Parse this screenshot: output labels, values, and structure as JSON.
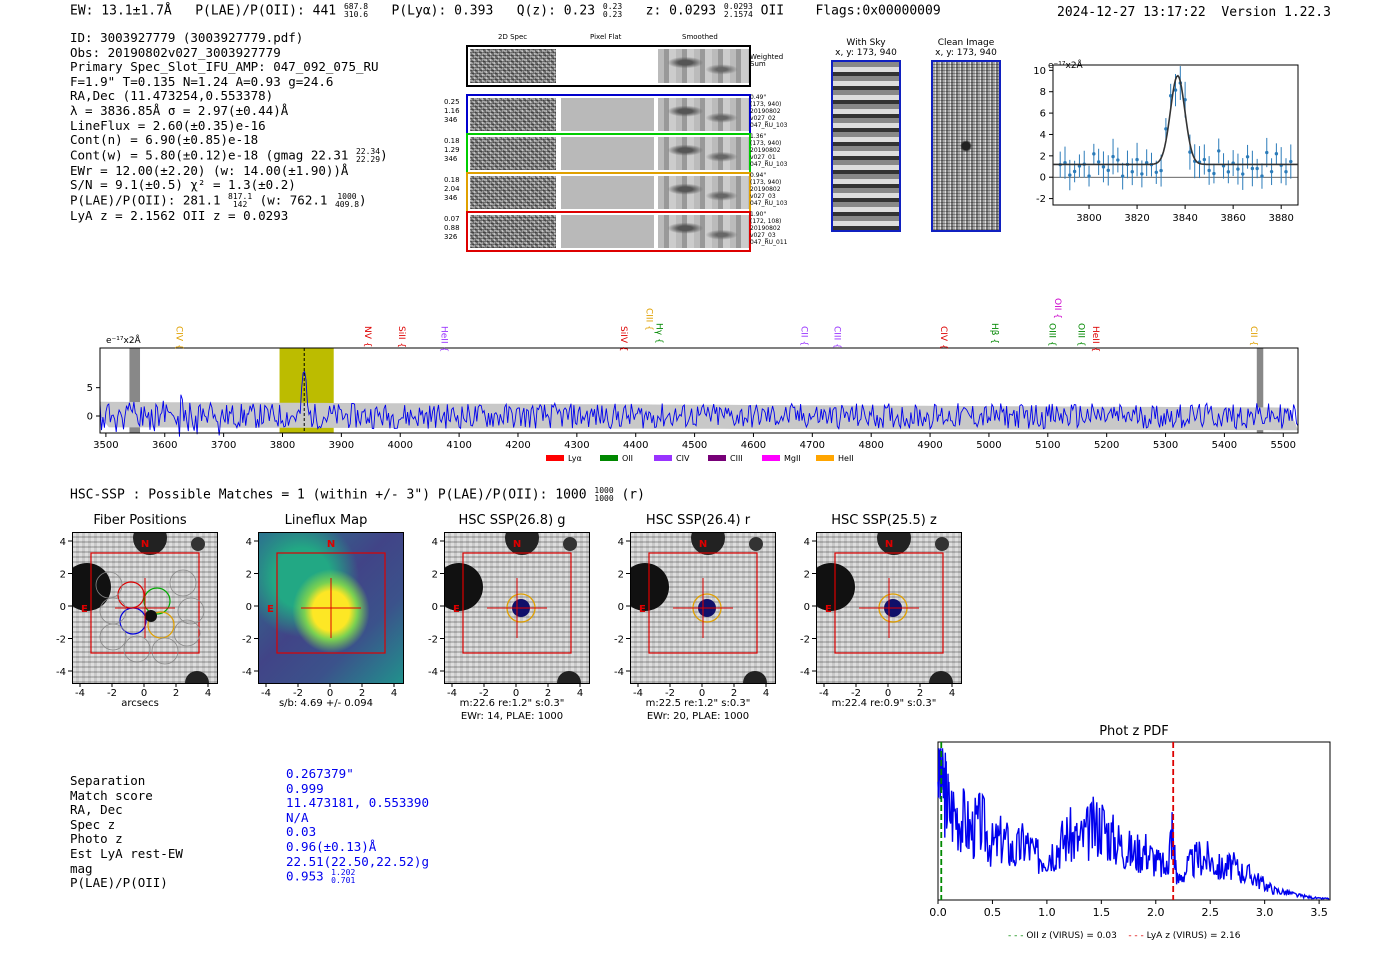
{
  "header": {
    "ew": "EW: 13.1±1.7Å",
    "plae_label": "P(LAE)/P(OII): 441",
    "plae_hi": "687.8",
    "plae_lo": "310.6",
    "plya": "P(Lyα): 0.393",
    "qz_label": "Q(z): 0.23",
    "qz_hi": "0.23",
    "qz_lo": "0.23",
    "z_label": "z: 0.0293",
    "z_hi": "0.0293",
    "z_lo": "2.1574",
    "z_line": "OII",
    "flags": "Flags:0x00000009",
    "datetime": "2024-12-27 13:17:22",
    "version": "Version 1.22.3"
  },
  "info": {
    "id": "ID: 3003927779 (3003927779.pdf)",
    "obs": "Obs: 20190802v027_3003927779",
    "primary": "Primary Spec_Slot_IFU_AMP: 047_092_075_RU",
    "params": "F=1.9\"  T=0.135  N=1.24  A=0.93  g=24.6",
    "radec": "RA,Dec (11.473254,0.553378)",
    "lambda": "λ = 3836.85Å  σ = 2.97(±0.44)Å",
    "lineflux": "LineFlux = 2.60(±0.35)e-16",
    "contn": "Cont(n) = 6.90(±0.85)e-18",
    "contw": "Cont(w) = 5.80(±0.12)e-18 (gmag 22.31",
    "contw_hi": "22.34",
    "contw_lo": "22.29",
    "contw_end": ")",
    "ewr": "EWr = 12.00(±2.20) (w: 14.00(±1.90))Å",
    "sn": "S/N = 9.1(±0.5)  χ² = 1.3(±0.2)",
    "plae2": "P(LAE)/P(OII): 281.1",
    "plae2_hi": "817.1",
    "plae2_lo": "142",
    "plae2_w": "(w: 762.1",
    "plae2_w_hi": "1000",
    "plae2_w_lo": "409.8",
    "plae2_end": ")",
    "lyaz": "LyA z = 2.1562  OII z = 0.0293"
  },
  "spec2d": {
    "col_titles": [
      "2D Spec",
      "Pixel Flat",
      "Smoothed"
    ],
    "weighted_sum": "Weighted Sum",
    "rows": [
      {
        "color": "#0000cc",
        "stats": [
          "0.25",
          "1.16",
          "346"
        ],
        "meta": [
          "0.49\"",
          "(173, 940)",
          "20190802",
          "v027_02",
          "047_RU_103"
        ]
      },
      {
        "color": "#00cc00",
        "stats": [
          "0.18",
          "1.29",
          "346"
        ],
        "meta": [
          "1.36\"",
          "(173, 940)",
          "20190802",
          "v027_01",
          "047_RU_103"
        ]
      },
      {
        "color": "#e0a000",
        "stats": [
          "0.18",
          "2.04",
          "346"
        ],
        "meta": [
          "0.94\"",
          "(173, 940)",
          "20190802",
          "v027_03",
          "047_RU_103"
        ]
      },
      {
        "color": "#dd0000",
        "stats": [
          "0.07",
          "0.88",
          "326"
        ],
        "meta": [
          "1.90\"",
          "(172, 108)",
          "20190802",
          "v027_03",
          "047_RU_011"
        ]
      }
    ]
  },
  "cutouts": {
    "with_sky": "With Sky",
    "with_sky_xy": "x, y: 173, 940",
    "clean": "Clean Image",
    "clean_xy": "x, y: 173, 940"
  },
  "line_fit": {
    "unit": "e⁻¹⁷x2Å",
    "x_ticks": [
      "3800",
      "3820",
      "3840",
      "3860",
      "3880"
    ],
    "y_ticks": [
      "10",
      "8",
      "6",
      "4",
      "2",
      "0",
      "-2"
    ]
  },
  "full_spec": {
    "unit": "e⁻¹⁷x2Å",
    "x_ticks": [
      "3500",
      "3600",
      "3700",
      "3800",
      "3900",
      "4000",
      "4100",
      "4200",
      "4300",
      "4400",
      "4500",
      "4600",
      "4700",
      "4800",
      "4900",
      "5000",
      "5100",
      "5200",
      "5300",
      "5400",
      "5500"
    ],
    "y_ticks": [
      "5",
      "0"
    ],
    "lines": [
      {
        "label": "CIV",
        "color": "#e0a000",
        "wave": 3620
      },
      {
        "label": "NV",
        "color": "#dd0000",
        "wave": 3940
      },
      {
        "label": "SiII",
        "color": "#dd0000",
        "wave": 3998
      },
      {
        "label": "HeII",
        "color": "#9933ff",
        "wave": 4070
      },
      {
        "label": "SiIV",
        "color": "#dd0000",
        "wave": 4375
      },
      {
        "label": "CIII",
        "color": "#e0a000",
        "wave": 4418
      },
      {
        "label": "Hγ",
        "color": "#008800",
        "wave": 4435
      },
      {
        "label": "CII",
        "color": "#9933ff",
        "wave": 4682
      },
      {
        "label": "CIII",
        "color": "#9933ff",
        "wave": 4738
      },
      {
        "label": "CIV",
        "color": "#dd0000",
        "wave": 4919
      },
      {
        "label": "Hβ",
        "color": "#008800",
        "wave": 5005
      },
      {
        "label": "OII",
        "color": "#cc00cc",
        "wave": 5112
      },
      {
        "label": "OIII",
        "color": "#008800",
        "wave": 5103
      },
      {
        "label": "OIII",
        "color": "#008800",
        "wave": 5152
      },
      {
        "label": "HeII",
        "color": "#dd0000",
        "wave": 5177
      },
      {
        "label": "CII",
        "color": "#e0a000",
        "wave": 5445
      }
    ],
    "legend": [
      {
        "label": "Lyα",
        "color": "#ff0000"
      },
      {
        "label": "OII",
        "color": "#008800"
      },
      {
        "label": "CIV",
        "color": "#9933ff"
      },
      {
        "label": "CIII",
        "color": "#770077"
      },
      {
        "label": "MgII",
        "color": "#ff00ff"
      },
      {
        "label": "HeII",
        "color": "#ffa500"
      }
    ]
  },
  "hsc": {
    "summary": "HSC-SSP : Possible Matches = 1 (within +/- 3\")  P(LAE)/P(OII): 1000",
    "summary_hi": "1000",
    "summary_lo": "1000",
    "summary_end": "(r)",
    "panels": [
      {
        "title": "Fiber Positions",
        "sub1": "arcsecs",
        "sub2": ""
      },
      {
        "title": "Lineflux Map",
        "sub1": "s/b: 4.69 +/- 0.094",
        "sub2": ""
      },
      {
        "title": "HSC SSP(26.8) g",
        "sub1": "m:22.6  re:1.2\"  s:0.3\"",
        "sub2": "EWr: 14, PLAE: 1000"
      },
      {
        "title": "HSC SSP(26.4) r",
        "sub1": "m:22.5  re:1.2\"  s:0.3\"",
        "sub2": "EWr: 20, PLAE: 1000"
      },
      {
        "title": "HSC SSP(25.5) z",
        "sub1": "m:22.4  re:0.9\"  s:0.3\"",
        "sub2": ""
      }
    ],
    "axis_ticks": [
      "4",
      "2",
      "0",
      "-2",
      "-4"
    ],
    "x_ticks": [
      "-4",
      "-2",
      "0",
      "2",
      "4"
    ],
    "north": "N",
    "east": "E"
  },
  "match": {
    "labels": [
      "Separation",
      "Match score",
      "RA, Dec",
      "Spec z",
      "Photo z",
      "Est LyA rest-EW",
      "mag",
      "P(LAE)/P(OII)"
    ],
    "values": [
      "0.267379\"",
      "0.999",
      "11.473181, 0.553390",
      "N/A",
      "0.03",
      "0.96(±0.13)Å",
      "22.51(22.50,22.52)g",
      "0.953"
    ],
    "plae_hi": "1.202",
    "plae_lo": "0.701"
  },
  "chart_data": [
    {
      "type": "line",
      "title": "Phot z PDF",
      "xlabel": "",
      "ylabel": "",
      "xlim": [
        0,
        3.6
      ],
      "x_ticks": [
        "0.0",
        "0.5",
        "1.0",
        "1.5",
        "2.0",
        "2.5",
        "3.0",
        "3.5"
      ],
      "series": [
        {
          "name": "pdf",
          "x": [
            0.0,
            0.05,
            0.1,
            0.2,
            0.3,
            0.4,
            0.5,
            0.6,
            0.7,
            0.8,
            0.9,
            1.0,
            1.1,
            1.2,
            1.3,
            1.4,
            1.5,
            1.6,
            1.7,
            1.8,
            1.9,
            2.0,
            2.1,
            2.15,
            2.2,
            2.3,
            2.4,
            2.5,
            2.6,
            2.7,
            2.8,
            2.9,
            3.0,
            3.1,
            3.2,
            3.3,
            3.4,
            3.5,
            3.6
          ],
          "y": [
            0.9,
            0.75,
            0.6,
            0.55,
            0.45,
            0.5,
            0.35,
            0.4,
            0.3,
            0.38,
            0.28,
            0.3,
            0.35,
            0.42,
            0.38,
            0.45,
            0.5,
            0.4,
            0.35,
            0.3,
            0.33,
            0.25,
            0.2,
            0.45,
            0.12,
            0.22,
            0.28,
            0.26,
            0.2,
            0.22,
            0.18,
            0.15,
            0.1,
            0.06,
            0.05,
            0.03,
            0.02,
            0.01,
            0.01
          ]
        }
      ],
      "vlines": [
        {
          "name": "OII z (VIRUS) = 0.03",
          "x": 0.03,
          "color": "#008800"
        },
        {
          "name": "LyA z (VIRUS) = 2.16",
          "x": 2.16,
          "color": "#dd0000"
        }
      ]
    }
  ]
}
